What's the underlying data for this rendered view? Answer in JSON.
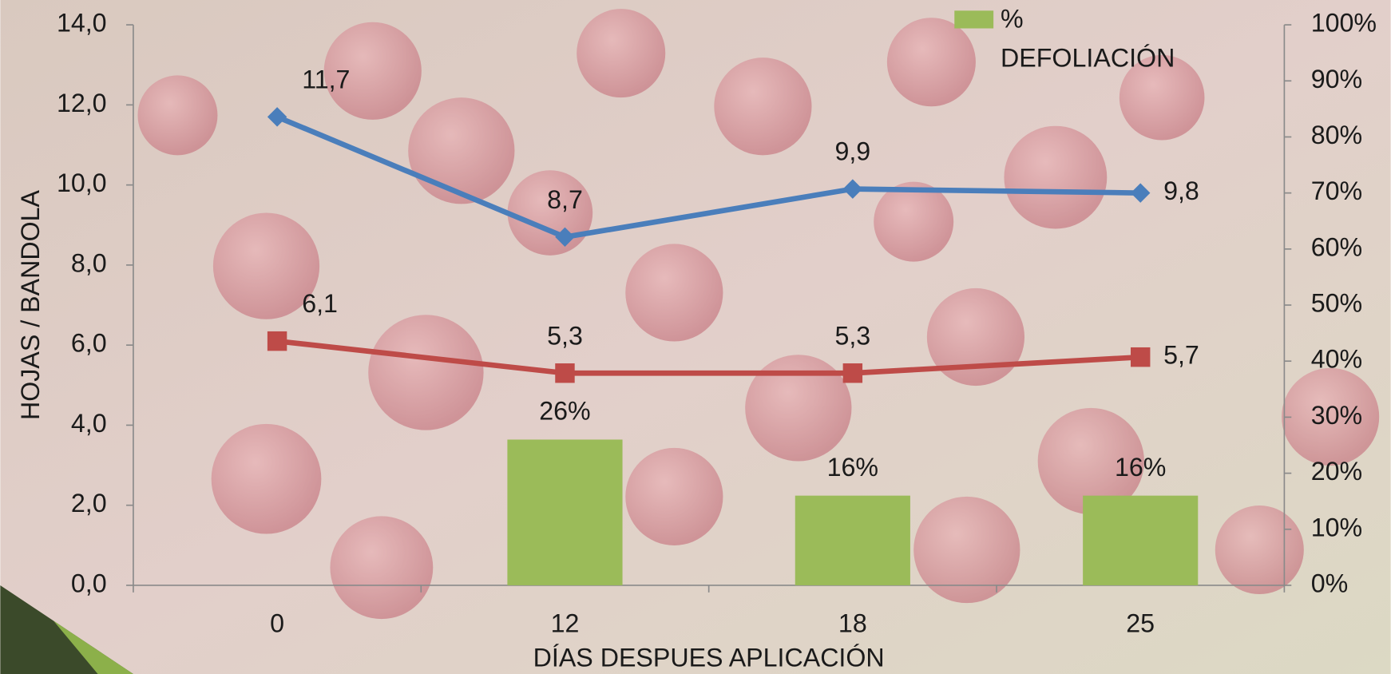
{
  "chart_data": {
    "type": "combo",
    "x_title": "DÍAS DESPUES APLICACIÓN",
    "y_title": "HOJAS / BANDOLA",
    "categories": [
      "0",
      "12",
      "18",
      "25"
    ],
    "series": [
      {
        "name": "% DEFOLIACIÓN",
        "type": "bar",
        "axis": "y2",
        "color": "#9bbb59",
        "values": [
          null,
          26,
          16,
          16
        ],
        "value_labels": [
          null,
          "26%",
          "16%",
          "16%"
        ]
      },
      {
        "type": "line",
        "color": "#4a7ebb",
        "marker": "diamond",
        "values": [
          11.7,
          8.7,
          9.9,
          9.8
        ],
        "value_labels": [
          "11,7",
          "8,7",
          "9,9",
          "9,8"
        ]
      },
      {
        "type": "line",
        "color": "#be4b48",
        "marker": "square",
        "values": [
          6.1,
          5.3,
          5.3,
          5.7
        ],
        "value_labels": [
          "6,1",
          "5,3",
          "5,3",
          "5,7"
        ]
      }
    ],
    "ylim": [
      0,
      14
    ],
    "yticks": [
      {
        "value": 0,
        "label": "0,0"
      },
      {
        "value": 2,
        "label": "2,0"
      },
      {
        "value": 4,
        "label": "4,0"
      },
      {
        "value": 6,
        "label": "6,0"
      },
      {
        "value": 8,
        "label": "8,0"
      },
      {
        "value": 10,
        "label": "10,0"
      },
      {
        "value": 12,
        "label": "12,0"
      },
      {
        "value": 14,
        "label": "14,0"
      }
    ],
    "y2lim": [
      0,
      100
    ],
    "y2ticks": [
      {
        "value": 0,
        "label": "0%"
      },
      {
        "value": 10,
        "label": "10%"
      },
      {
        "value": 20,
        "label": "20%"
      },
      {
        "value": 30,
        "label": "30%"
      },
      {
        "value": 40,
        "label": "40%"
      },
      {
        "value": 50,
        "label": "50%"
      },
      {
        "value": 60,
        "label": "60%"
      },
      {
        "value": 70,
        "label": "70%"
      },
      {
        "value": 80,
        "label": "80%"
      },
      {
        "value": 90,
        "label": "90%"
      },
      {
        "value": 100,
        "label": "100%"
      }
    ]
  }
}
